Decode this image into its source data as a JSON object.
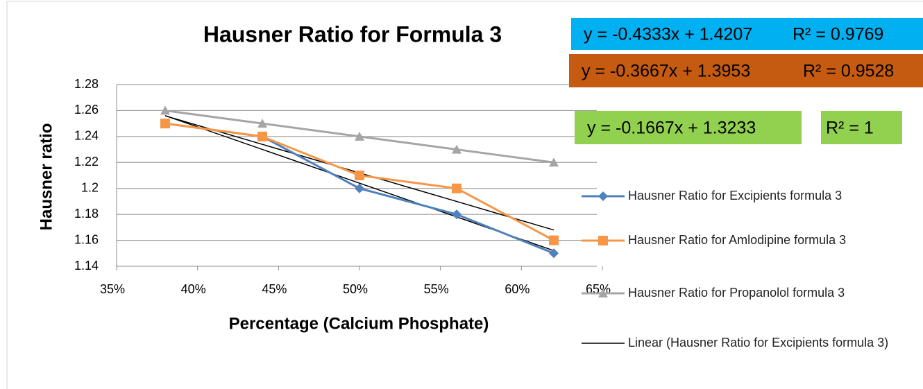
{
  "chart_data": {
    "type": "line",
    "title": "Hausner Ratio for Formula 3",
    "x_label": "Percentage (Calcium Phosphate)",
    "y_label": "Hausner ratio",
    "x": [
      38,
      44,
      50,
      56,
      62
    ],
    "series": [
      {
        "name": "Hausner Ratio for Excipients formula 3",
        "color": "#4f81bd",
        "marker": "diamond",
        "values": [
          1.25,
          1.24,
          1.2,
          1.18,
          1.15
        ]
      },
      {
        "name": "Hausner Ratio for Amlodipine formula 3",
        "color": "#f79646",
        "marker": "square",
        "values": [
          1.25,
          1.24,
          1.21,
          1.2,
          1.16
        ]
      },
      {
        "name": "Hausner Ratio for Propanolol formula 3",
        "color": "#a5a5a5",
        "marker": "triangle",
        "values": [
          1.26,
          1.25,
          1.24,
          1.23,
          1.22
        ]
      }
    ],
    "trendlines": [
      {
        "name": "Linear (Hausner Ratio for Excipients formula 3)",
        "slope": -0.4333,
        "intercept": 1.4207,
        "equation": "y = -0.4333x + 1.4207",
        "r2": "R² = 0.9769",
        "box_color": "#00b0f0"
      },
      {
        "slope": -0.3667,
        "intercept": 1.3953,
        "equation": "y = -0.3667x + 1.3953",
        "r2": "R² = 0.9528",
        "box_color": "#c55a11"
      },
      {
        "slope": -0.1667,
        "intercept": 1.3233,
        "equation": "y = -0.1667x + 1.3233",
        "r2": "R² = 1",
        "box_color": "#92d050"
      }
    ],
    "xlim": [
      35,
      65
    ],
    "xticks": [
      {
        "value": 35,
        "label": "35%"
      },
      {
        "value": 40,
        "label": "40%"
      },
      {
        "value": 45,
        "label": "45%"
      },
      {
        "value": 50,
        "label": "50%"
      },
      {
        "value": 55,
        "label": "55%"
      },
      {
        "value": 60,
        "label": "60%"
      },
      {
        "value": 65,
        "label": "65%"
      }
    ],
    "ylim": [
      1.14,
      1.28
    ],
    "yticks": [
      1.14,
      1.16,
      1.18,
      1.2,
      1.22,
      1.24,
      1.26,
      1.28
    ],
    "grid": true,
    "legend": "right"
  }
}
